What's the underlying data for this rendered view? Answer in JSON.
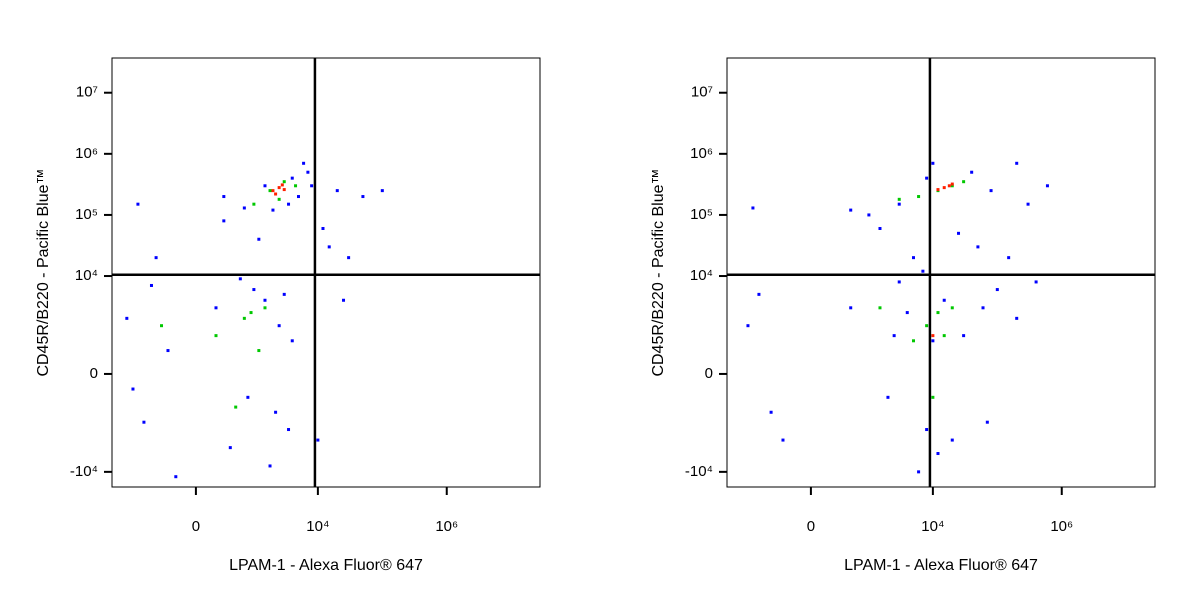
{
  "chart_data": [
    {
      "type": "scatter",
      "scale": "biexponential",
      "xlabel": "LPAM-1 - Alexa Fluor® 647",
      "ylabel": "CD45R/B220 - Pacific Blue™",
      "xlim": [
        -2560,
        28000000
      ],
      "ylim": [
        -17700,
        37000000
      ],
      "xticks": [
        0,
        {
          "value": 10000,
          "label": "10⁴"
        },
        {
          "value": 1000000,
          "label": "10⁶"
        }
      ],
      "yticks": [
        {
          "value": -10000,
          "label": "-10⁴"
        },
        0,
        {
          "value": 10000,
          "label": "10⁴"
        },
        {
          "value": 100000,
          "label": "10⁵"
        },
        {
          "value": 1000000,
          "label": "10⁶"
        },
        {
          "value": 10000000,
          "label": "10⁷"
        }
      ],
      "quadrant_gate": {
        "x": 9000,
        "y": 10500
      },
      "series": [
        {
          "color": "#0000ff",
          "x": [
            -1500,
            -800,
            200,
            800,
            1500,
            -300,
            2500,
            3500,
            400,
            -1200,
            1000,
            3000,
            600,
            -500,
            1200,
            300,
            -1000,
            2000,
            4000,
            5000,
            700,
            6000,
            8000,
            20000,
            50000,
            15000,
            30000,
            10000,
            1800,
            -200,
            4000,
            2200,
            -600,
            1500,
            300,
            3500,
            7000,
            100000,
            25000,
            12000
          ],
          "values": [
            2000,
            -1500,
            3000,
            -500,
            4000,
            500,
            1500,
            -2000,
            -4000,
            -300,
            6000,
            5000,
            9000,
            20000,
            40000,
            80000,
            150000,
            120000,
            400000,
            200000,
            130000,
            700000,
            300000,
            250000,
            200000,
            30000,
            20000,
            -3000,
            -8000,
            -12000,
            800,
            -1000,
            7000,
            300000,
            200000,
            150000,
            500000,
            250000,
            4000,
            60000
          ]
        },
        {
          "color": "#00c800",
          "x": [
            200,
            700,
            1200,
            -400,
            500,
            1500,
            1000,
            2500,
            3000,
            1800,
            4500,
            900
          ],
          "values": [
            1000,
            2000,
            500,
            1500,
            -800,
            3000,
            150000,
            180000,
            350000,
            250000,
            300000,
            2500
          ]
        },
        {
          "color": "#ff2000",
          "x": [
            2000,
            2500,
            3000,
            2200,
            2800
          ],
          "values": [
            250000,
            280000,
            260000,
            220000,
            310000
          ]
        }
      ]
    },
    {
      "type": "scatter",
      "scale": "biexponential",
      "xlabel": "LPAM-1 - Alexa Fluor® 647",
      "ylabel": "CD45R/B220 - Pacific Blue™",
      "xlim": [
        -2560,
        28000000
      ],
      "ylim": [
        -17700,
        37000000
      ],
      "xticks": [
        0,
        {
          "value": 10000,
          "label": "10⁴"
        },
        {
          "value": 1000000,
          "label": "10⁶"
        }
      ],
      "yticks": [
        {
          "value": -10000,
          "label": "-10⁴"
        },
        0,
        {
          "value": 10000,
          "label": "10⁴"
        },
        {
          "value": 100000,
          "label": "10⁵"
        },
        {
          "value": 1000000,
          "label": "10⁶"
        },
        {
          "value": 10000000,
          "label": "10⁷"
        }
      ],
      "quadrant_gate": {
        "x": 9000,
        "y": 10500
      },
      "series": [
        {
          "color": "#0000ff",
          "x": [
            -1200,
            -500,
            500,
            2000,
            4000,
            8000,
            15000,
            30000,
            60000,
            100000,
            200000,
            400000,
            -800,
            3000,
            12000,
            6000,
            20000,
            1000,
            3000,
            500,
            8000,
            40000,
            80000,
            200000,
            600000,
            150000,
            50000,
            25000,
            5000,
            -1000,
            1500,
            70000,
            10000,
            -300,
            2500,
            300000,
            10000,
            7000
          ],
          "values": [
            1500,
            -1000,
            3000,
            -500,
            2500,
            -2000,
            4000,
            1000,
            3000,
            6000,
            2000,
            8000,
            5000,
            8000,
            -5000,
            -10000,
            -3000,
            100000,
            150000,
            120000,
            400000,
            500000,
            250000,
            700000,
            300000,
            20000,
            30000,
            50000,
            20000,
            130000,
            60000,
            -1500,
            800,
            -3000,
            1000,
            150000,
            700000,
            12000
          ]
        },
        {
          "color": "#00c800",
          "x": [
            8000,
            12000,
            10000,
            15000,
            5000,
            20000,
            6000,
            12000,
            3000,
            30000,
            20000,
            1500
          ],
          "values": [
            1500,
            2500,
            -500,
            1000,
            800,
            3000,
            200000,
            250000,
            180000,
            350000,
            300000,
            3000
          ]
        },
        {
          "color": "#ff2000",
          "x": [
            15000,
            18000,
            12000,
            20000,
            10000
          ],
          "values": [
            280000,
            300000,
            260000,
            320000,
            1000
          ]
        }
      ]
    }
  ]
}
